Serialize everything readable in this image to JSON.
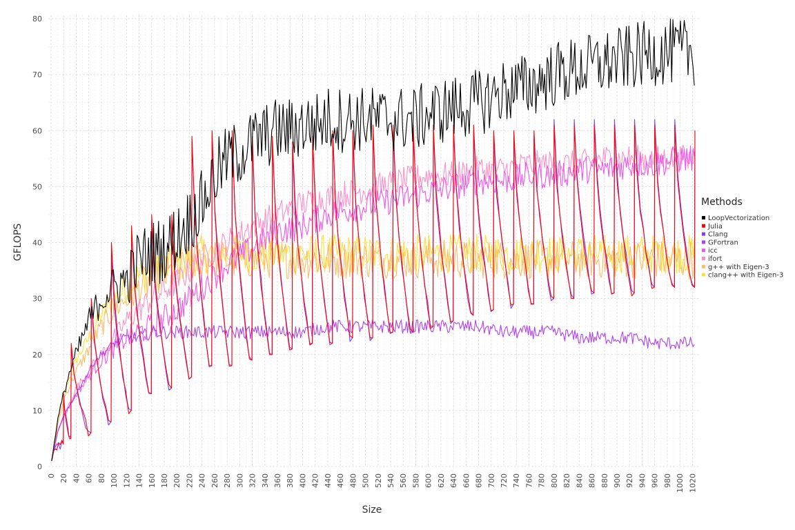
{
  "chart_data": {
    "type": "line",
    "xlabel": "Size",
    "ylabel": "GFLOPS",
    "xlim": [
      0,
      1024
    ],
    "ylim": [
      0,
      80
    ],
    "xticks": [
      0,
      20,
      40,
      60,
      80,
      100,
      120,
      140,
      160,
      180,
      200,
      220,
      240,
      260,
      280,
      300,
      320,
      340,
      360,
      380,
      400,
      420,
      440,
      460,
      480,
      500,
      520,
      540,
      560,
      580,
      600,
      620,
      640,
      660,
      680,
      700,
      720,
      740,
      760,
      780,
      800,
      820,
      840,
      860,
      880,
      900,
      920,
      940,
      960,
      980,
      1000,
      1020
    ],
    "yticks": [
      0,
      10,
      20,
      30,
      40,
      50,
      60,
      70,
      80
    ],
    "grid": true,
    "legend": {
      "title": "Methods",
      "placement": "right"
    },
    "series": [
      {
        "name": "LoopVectorization",
        "color": "#000000",
        "x": [
          1,
          10,
          20,
          30,
          40,
          50,
          60,
          70,
          80,
          90,
          100,
          110,
          120,
          130,
          140,
          160,
          180,
          200,
          220,
          240,
          260,
          280,
          300,
          320,
          340,
          360,
          380,
          400,
          420,
          440,
          460,
          480,
          500,
          520,
          540,
          560,
          580,
          600,
          640,
          680,
          720,
          760,
          800,
          840,
          880,
          920,
          960,
          1000,
          1024
        ],
        "y": [
          1,
          8,
          13,
          17,
          20,
          23,
          26,
          28,
          30,
          31,
          32,
          33,
          33,
          35,
          37,
          38,
          39,
          41,
          44,
          47,
          52,
          55,
          56,
          58,
          59,
          60,
          60,
          61,
          61,
          62,
          62,
          62,
          62,
          62,
          62,
          62,
          62,
          63,
          64,
          65,
          67,
          68,
          70,
          71,
          72,
          73,
          74,
          74,
          74
        ]
      },
      {
        "name": "Julia",
        "color": "#ff0000",
        "peaks_x": [
          20,
          32,
          64,
          96,
          128,
          160,
          192,
          224,
          256,
          288,
          320,
          352,
          384,
          416,
          448,
          480,
          512,
          544,
          576,
          608,
          640,
          672,
          704,
          736,
          768,
          800,
          832,
          864,
          896,
          928,
          960,
          992,
          1024
        ],
        "peaks_y": [
          13,
          22,
          30,
          40,
          43,
          45,
          45,
          59,
          60,
          60,
          59,
          59,
          58,
          59,
          60,
          60,
          61,
          61,
          61,
          61,
          61,
          61,
          60,
          60,
          60,
          61,
          61,
          61,
          61,
          61,
          61,
          61,
          60
        ],
        "troughs_y": [
          4,
          5,
          6,
          8,
          10,
          13,
          14,
          16,
          18,
          18,
          19,
          20,
          21,
          22,
          22,
          23,
          23,
          24,
          24,
          25,
          26,
          27,
          28,
          29,
          29,
          30,
          30,
          31,
          31,
          31,
          32,
          32,
          32
        ]
      },
      {
        "name": "Clang",
        "color": "#7a3cff",
        "peaks_x": [
          20,
          32,
          64,
          96,
          128,
          160,
          192,
          224,
          256,
          288,
          320,
          352,
          384,
          416,
          448,
          480,
          512,
          544,
          576,
          608,
          640,
          672,
          704,
          736,
          768,
          800,
          832,
          864,
          896,
          928,
          960,
          992,
          1024
        ],
        "peaks_y": [
          12,
          21,
          29,
          38,
          42,
          44,
          44,
          58,
          59,
          59,
          58,
          58,
          57,
          58,
          59,
          59,
          60,
          60,
          60,
          60,
          60,
          60,
          59,
          59,
          59,
          62,
          62,
          62,
          62,
          62,
          62,
          62,
          60
        ],
        "troughs_y": [
          4,
          5,
          6,
          8,
          10,
          13,
          14,
          16,
          18,
          18,
          19,
          20,
          21,
          22,
          22,
          23,
          23,
          24,
          24,
          25,
          26,
          27,
          28,
          29,
          29,
          30,
          30,
          31,
          31,
          31,
          32,
          32,
          32
        ]
      },
      {
        "name": "GFortran",
        "color": "#b040f0",
        "x": [
          1,
          10,
          20,
          30,
          40,
          50,
          60,
          70,
          80,
          100,
          120,
          140,
          160,
          200,
          240,
          280,
          320,
          360,
          400,
          440,
          480,
          520,
          560,
          600,
          640,
          680,
          720,
          760,
          800,
          840,
          880,
          920,
          960,
          1000,
          1024
        ],
        "y": [
          1,
          6,
          9,
          11,
          13,
          15,
          17,
          19,
          20,
          22,
          23,
          23,
          24,
          24,
          24,
          24,
          24,
          24,
          24,
          25,
          25,
          25,
          25,
          25,
          25,
          25,
          24,
          24,
          24,
          23,
          23,
          23,
          22,
          22,
          22
        ]
      },
      {
        "name": "icc",
        "color": "#ee55ee",
        "x": [
          1,
          10,
          20,
          40,
          60,
          80,
          100,
          120,
          140,
          160,
          200,
          240,
          280,
          320,
          360,
          400,
          440,
          480,
          520,
          560,
          600,
          640,
          680,
          720,
          760,
          800,
          840,
          880,
          920,
          960,
          1000,
          1024
        ],
        "y": [
          1,
          6,
          9,
          13,
          16,
          19,
          21,
          23,
          24,
          25,
          28,
          32,
          36,
          39,
          42,
          43,
          45,
          46,
          47,
          48,
          49,
          50,
          51,
          51,
          52,
          52,
          53,
          53,
          54,
          54,
          55,
          55
        ]
      },
      {
        "name": "ifort",
        "color": "#ff8fc8",
        "x": [
          1,
          10,
          20,
          40,
          60,
          80,
          100,
          120,
          140,
          160,
          200,
          240,
          280,
          320,
          360,
          400,
          440,
          480,
          520,
          560,
          600,
          640,
          680,
          720,
          760,
          800,
          840,
          880,
          920,
          960,
          1000,
          1024
        ],
        "y": [
          1,
          6,
          9,
          14,
          17,
          20,
          23,
          26,
          28,
          30,
          33,
          37,
          40,
          43,
          45,
          47,
          48,
          49,
          50,
          51,
          52,
          52,
          53,
          53,
          54,
          54,
          54,
          55,
          55,
          55,
          55,
          55
        ]
      },
      {
        "name": "g++ with Eigen-3",
        "color": "#ffbb66",
        "x": [
          1,
          10,
          20,
          40,
          60,
          80,
          100,
          120,
          140,
          160,
          200,
          240,
          280,
          320,
          360,
          400,
          440,
          480,
          520,
          560,
          600,
          640,
          680,
          720,
          760,
          800,
          840,
          880,
          920,
          960,
          1000,
          1024
        ],
        "y": [
          1,
          7,
          12,
          17,
          21,
          25,
          28,
          30,
          32,
          33,
          35,
          37,
          37,
          37,
          37,
          37,
          37,
          37,
          37,
          37,
          37,
          37,
          37,
          37,
          37,
          37,
          37,
          37,
          37,
          37,
          37,
          37
        ]
      },
      {
        "name": "clang++ with Eigen-3",
        "color": "#ffe033",
        "x": [
          1,
          10,
          20,
          40,
          60,
          80,
          100,
          120,
          140,
          160,
          200,
          240,
          280,
          320,
          360,
          400,
          440,
          480,
          520,
          560,
          600,
          640,
          680,
          720,
          760,
          800,
          840,
          880,
          920,
          960,
          1000,
          1024
        ],
        "y": [
          1,
          8,
          13,
          19,
          23,
          27,
          30,
          32,
          34,
          35,
          36,
          38,
          38,
          38,
          38,
          38,
          38,
          38,
          38,
          38,
          38,
          38,
          38,
          38,
          38,
          38,
          38,
          38,
          38,
          38,
          38,
          38
        ]
      }
    ]
  }
}
